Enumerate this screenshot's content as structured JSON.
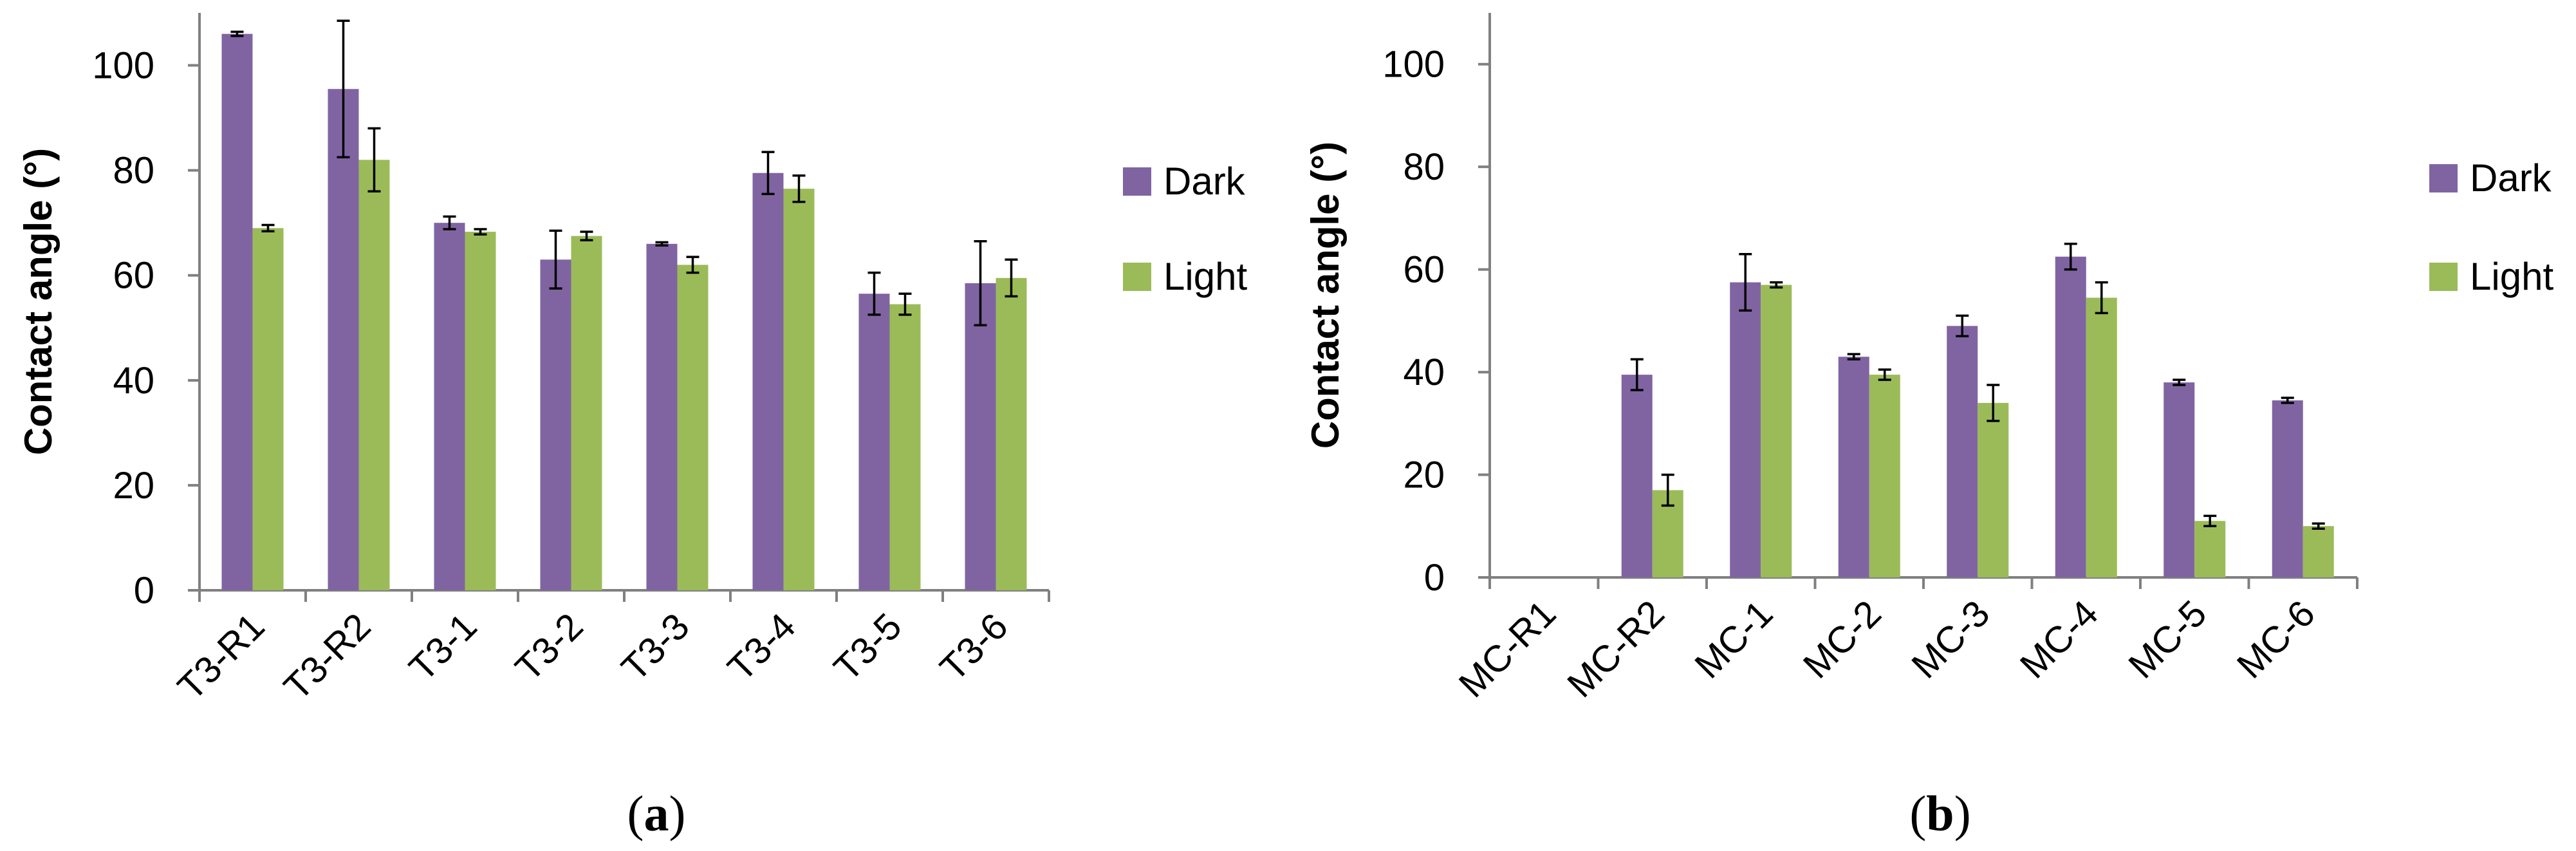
{
  "colors": {
    "dark": "#8064a2",
    "light": "#9bbb59",
    "axis": "#808080",
    "error": "#000000"
  },
  "chart_data": [
    {
      "type": "bar",
      "panel_label": "a",
      "ylabel": "Contact angle (°)",
      "xlabel": "",
      "ylim": [
        0,
        110
      ],
      "yticks": [
        0,
        20,
        40,
        60,
        80,
        100
      ],
      "legend_position": "right",
      "categories": [
        "T3-R1",
        "T3-R2",
        "T3-1",
        "T3-2",
        "T3-3",
        "T3-4",
        "T3-5",
        "T3-6"
      ],
      "series": [
        {
          "name": "Dark",
          "values": [
            106,
            95.5,
            70,
            63,
            66,
            79.5,
            56.5,
            58.5
          ],
          "errors": [
            0.4,
            13,
            1.2,
            5.5,
            0.3,
            4,
            4,
            8
          ]
        },
        {
          "name": "Light",
          "values": [
            69,
            82,
            68.3,
            67.5,
            62,
            76.5,
            54.5,
            59.5
          ],
          "errors": [
            0.6,
            6,
            0.5,
            0.8,
            1.5,
            2.5,
            2,
            3.5
          ]
        }
      ]
    },
    {
      "type": "bar",
      "panel_label": "b",
      "ylabel": "Contact angle (°)",
      "xlabel": "",
      "ylim": [
        0,
        110
      ],
      "yticks": [
        0,
        20,
        40,
        60,
        80,
        100
      ],
      "legend_position": "right",
      "categories": [
        "MC-R1",
        "MC-R2",
        "MC-1",
        "MC-2",
        "MC-3",
        "MC-4",
        "MC-5",
        "MC-6"
      ],
      "series": [
        {
          "name": "Dark",
          "values": [
            0,
            39.5,
            57.5,
            43,
            49,
            62.5,
            38,
            34.5
          ],
          "errors": [
            0,
            3,
            5.5,
            0.5,
            2,
            2.5,
            0.5,
            0.5
          ]
        },
        {
          "name": "Light",
          "values": [
            0,
            17,
            57,
            39.5,
            34,
            54.5,
            11,
            10
          ],
          "errors": [
            0,
            3,
            0.5,
            1,
            3.5,
            3,
            1,
            0.5
          ]
        }
      ]
    }
  ]
}
